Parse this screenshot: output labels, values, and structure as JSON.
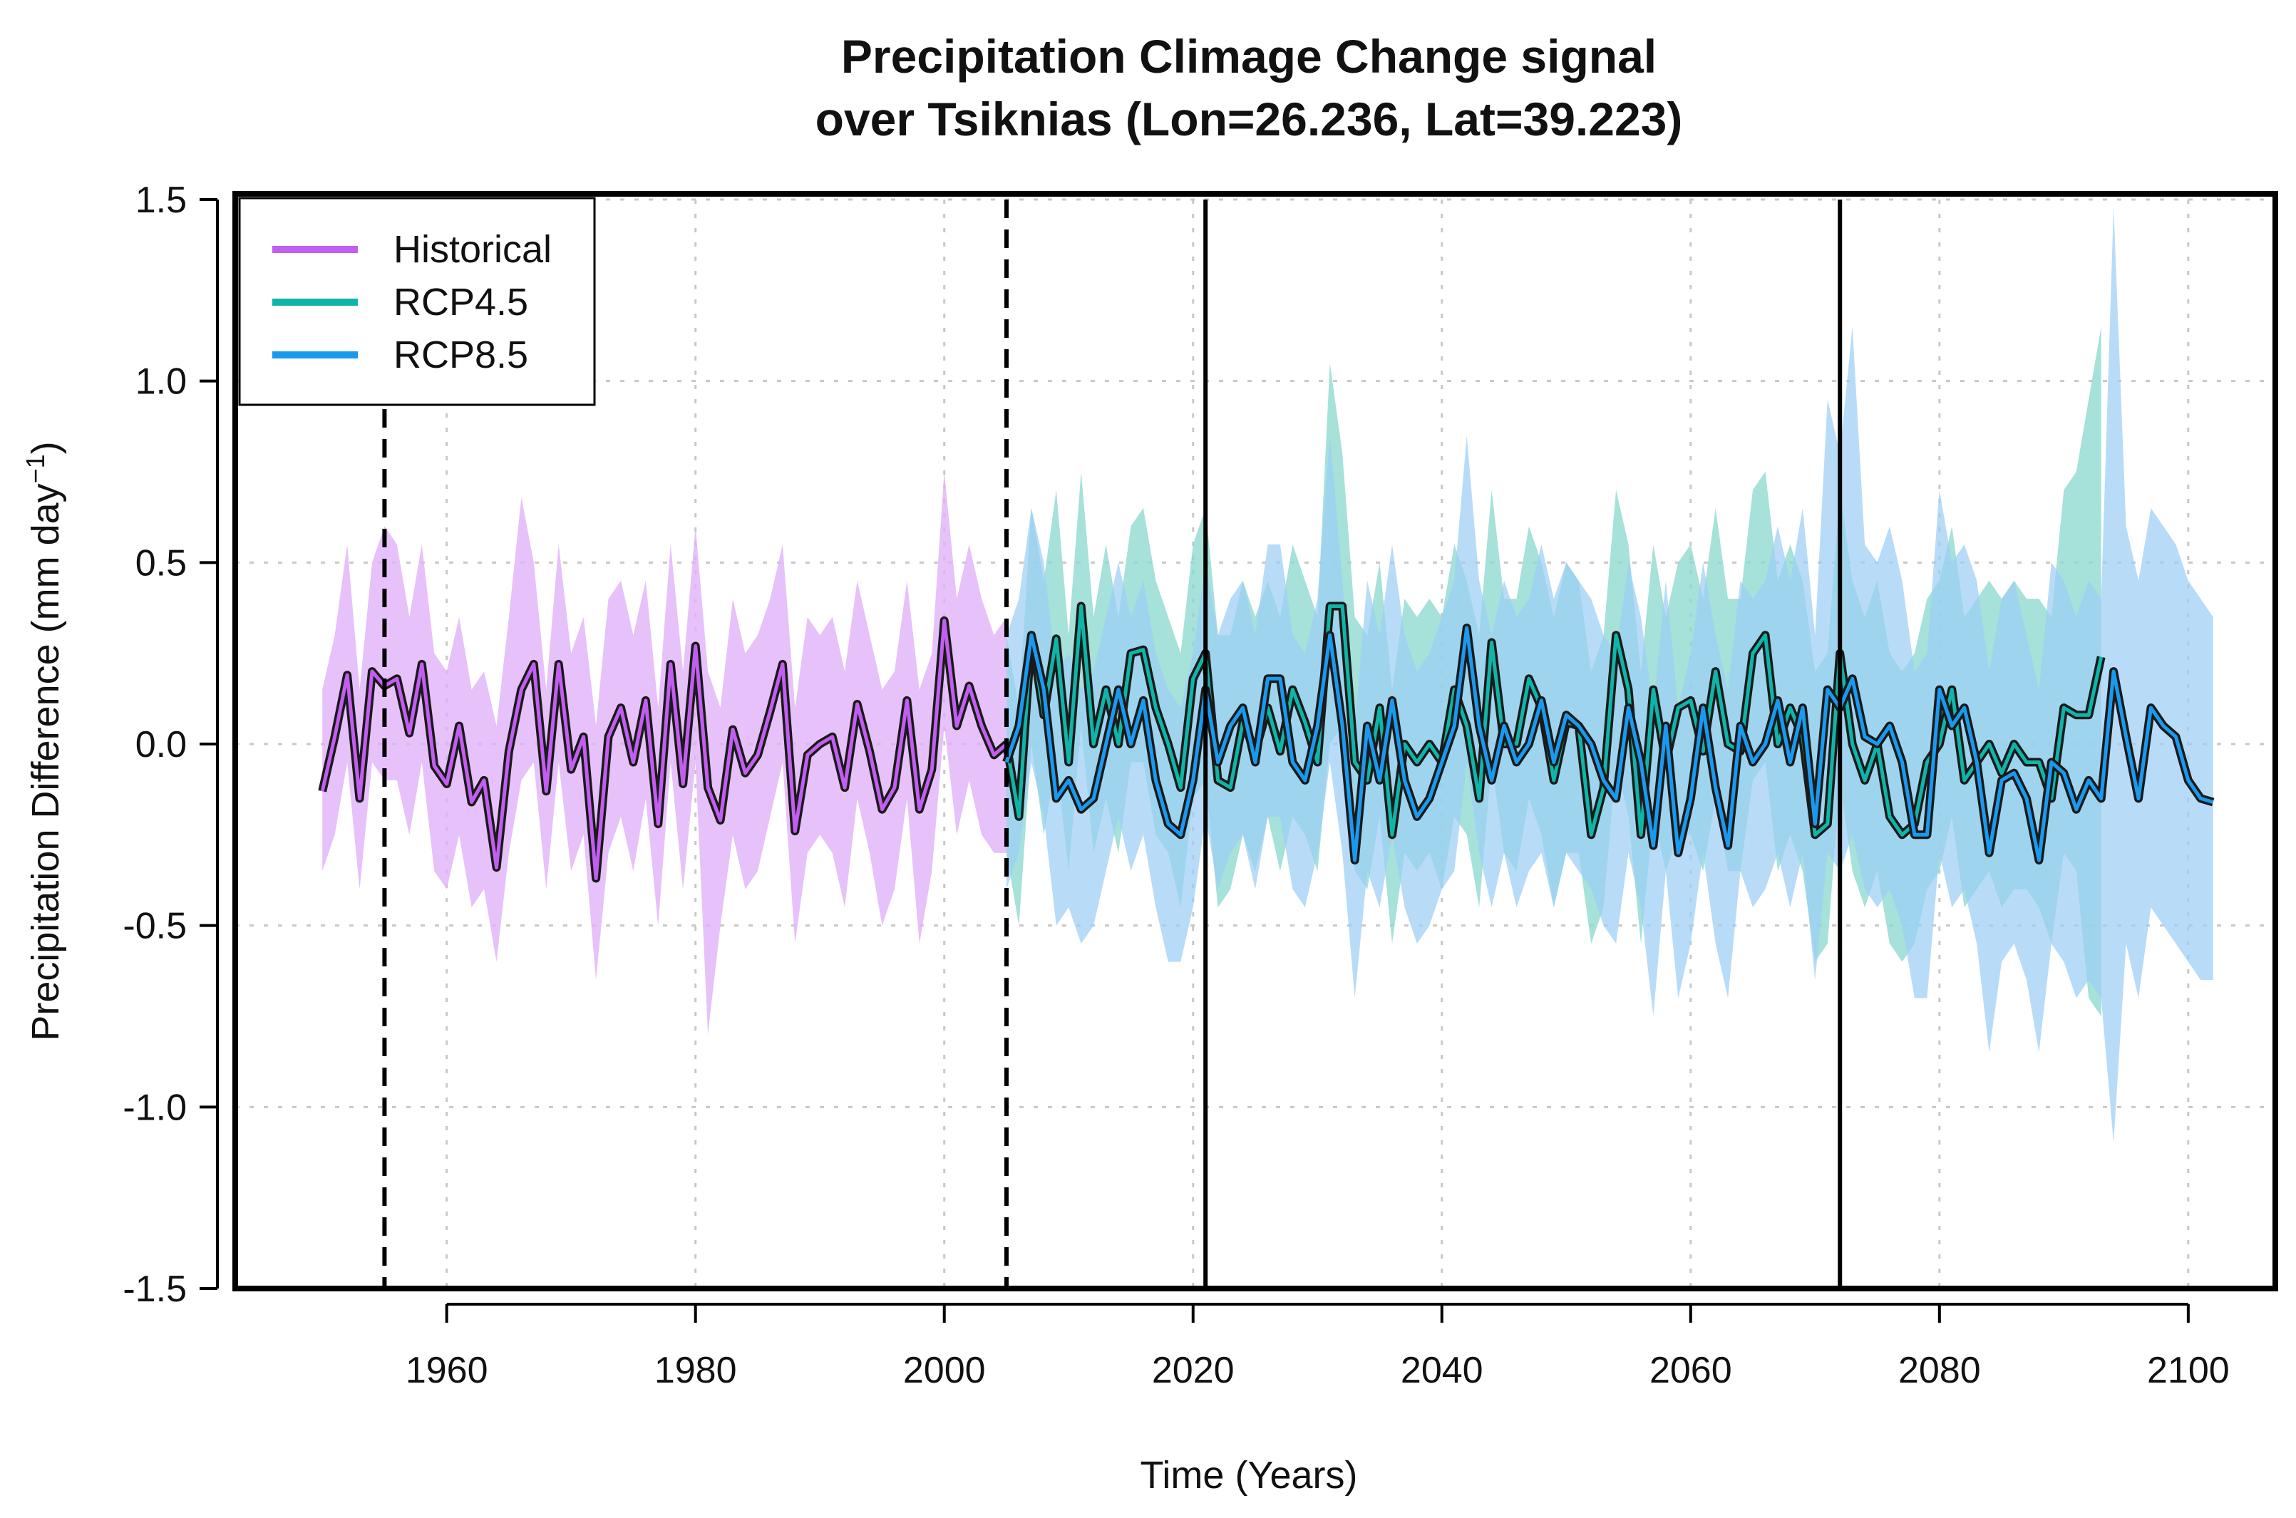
{
  "chart_data": {
    "type": "line",
    "title_line1": "Precipitation Climage Change signal",
    "title_line2": "over Tsiknias (Lon=26.236, Lat=39.223)",
    "xlabel": "Time (Years)",
    "ylabel": "Precipitation Difference (mm day",
    "ylabel_superscript": "−1",
    "ylabel_close": ")",
    "xlim": [
      1943,
      2107
    ],
    "ylim": [
      -1.5,
      1.5
    ],
    "xticks": [
      1960,
      1980,
      2000,
      2020,
      2040,
      2060,
      2080,
      2100
    ],
    "xtick_labels": [
      "1960",
      "1980",
      "2000",
      "2020",
      "2040",
      "2060",
      "2080",
      "2100"
    ],
    "yticks": [
      1.5,
      1.0,
      0.5,
      0.0,
      -0.5,
      -1.0,
      -1.5
    ],
    "ytick_labels": [
      "1.5",
      "1.0",
      "0.5",
      "0.0",
      "-0.5",
      "-1.0",
      "-1.5"
    ],
    "grid": true,
    "legend_position": "top-left",
    "reference_lines": [
      {
        "x": 1955,
        "style": "dashed"
      },
      {
        "x": 2005,
        "style": "dashed"
      },
      {
        "x": 2021,
        "style": "solid"
      },
      {
        "x": 2072,
        "style": "solid"
      }
    ],
    "series": [
      {
        "name": "Historical",
        "color": "#c25ef0",
        "band_color": "#e0b0f7",
        "x_start": 1950,
        "values": [
          -0.13,
          0.02,
          0.19,
          -0.15,
          0.2,
          0.16,
          0.18,
          0.03,
          0.22,
          -0.06,
          -0.11,
          0.05,
          -0.16,
          -0.1,
          -0.34,
          -0.02,
          0.15,
          0.22,
          -0.13,
          0.22,
          -0.07,
          0.02,
          -0.37,
          0.02,
          0.1,
          -0.05,
          0.12,
          -0.22,
          0.22,
          -0.11,
          0.27,
          -0.12,
          -0.21,
          0.04,
          -0.08,
          -0.03,
          0.09,
          0.22,
          -0.24,
          -0.03,
          0.0,
          0.02,
          -0.12,
          0.11,
          -0.02,
          -0.18,
          -0.12,
          0.12,
          -0.18,
          -0.07,
          0.34,
          0.05,
          0.16,
          0.05,
          -0.03,
          0.0
        ],
        "lower": [
          -0.35,
          -0.25,
          -0.05,
          -0.4,
          -0.05,
          -0.1,
          -0.1,
          -0.25,
          -0.05,
          -0.35,
          -0.4,
          -0.25,
          -0.45,
          -0.4,
          -0.6,
          -0.3,
          -0.1,
          -0.05,
          -0.4,
          -0.05,
          -0.35,
          -0.25,
          -0.65,
          -0.3,
          -0.2,
          -0.35,
          -0.15,
          -0.5,
          -0.05,
          -0.4,
          -0.05,
          -0.8,
          -0.5,
          -0.25,
          -0.4,
          -0.35,
          -0.2,
          -0.05,
          -0.55,
          -0.3,
          -0.25,
          -0.3,
          -0.45,
          -0.15,
          -0.3,
          -0.5,
          -0.4,
          -0.15,
          -0.55,
          -0.35,
          0.05,
          -0.25,
          -0.1,
          -0.25,
          -0.3,
          -0.3
        ],
        "upper": [
          0.15,
          0.3,
          0.55,
          0.15,
          0.5,
          0.6,
          0.55,
          0.35,
          0.55,
          0.25,
          0.2,
          0.35,
          0.15,
          0.2,
          0.05,
          0.35,
          0.68,
          0.5,
          0.15,
          0.55,
          0.25,
          0.35,
          0.05,
          0.4,
          0.45,
          0.3,
          0.45,
          0.1,
          0.55,
          0.2,
          0.6,
          0.2,
          0.1,
          0.4,
          0.25,
          0.3,
          0.4,
          0.55,
          0.1,
          0.35,
          0.3,
          0.35,
          0.2,
          0.45,
          0.3,
          0.15,
          0.2,
          0.45,
          0.15,
          0.25,
          0.75,
          0.4,
          0.55,
          0.4,
          0.3,
          0.35
        ]
      },
      {
        "name": "RCP4.5",
        "color": "#0fb5a8",
        "band_color": "#8dd9cf",
        "x_start": 2005,
        "values": [
          0.0,
          -0.2,
          0.3,
          0.08,
          0.29,
          -0.05,
          0.38,
          0.0,
          0.15,
          0.0,
          0.25,
          0.26,
          0.1,
          0.0,
          -0.12,
          0.18,
          0.25,
          -0.1,
          -0.12,
          0.06,
          -0.02,
          0.1,
          -0.02,
          0.15,
          0.06,
          -0.05,
          0.38,
          0.38,
          -0.05,
          -0.1,
          0.1,
          -0.25,
          0.0,
          -0.05,
          0.0,
          -0.05,
          0.15,
          0.05,
          -0.15,
          0.28,
          0.0,
          0.0,
          0.18,
          0.1,
          -0.1,
          0.06,
          0.05,
          -0.25,
          -0.12,
          0.3,
          0.15,
          -0.25,
          0.15,
          -0.05,
          0.1,
          0.12,
          -0.02,
          0.2,
          0.0,
          -0.02,
          0.25,
          0.3,
          0.0,
          0.1,
          0.02,
          -0.25,
          -0.22,
          0.25,
          0.0,
          -0.1,
          0.0,
          -0.2,
          -0.25,
          -0.22,
          -0.05,
          0.0,
          0.15,
          -0.1,
          -0.05,
          0.0,
          -0.08,
          0.0,
          -0.05,
          -0.05,
          -0.15,
          0.1,
          0.08,
          0.08,
          0.24
        ],
        "lower": [
          -0.3,
          -0.5,
          0.0,
          -0.25,
          -0.05,
          -0.35,
          0.05,
          -0.3,
          -0.15,
          -0.3,
          -0.05,
          -0.05,
          -0.25,
          -0.3,
          -0.45,
          -0.15,
          -0.1,
          -0.45,
          -0.4,
          -0.25,
          -0.35,
          -0.2,
          -0.35,
          -0.2,
          -0.25,
          -0.35,
          0.0,
          0.05,
          -0.35,
          -0.4,
          -0.2,
          -0.55,
          -0.3,
          -0.35,
          -0.3,
          -0.4,
          -0.2,
          -0.25,
          -0.45,
          -0.05,
          -0.3,
          -0.35,
          -0.15,
          -0.25,
          -0.45,
          -0.3,
          -0.3,
          -0.55,
          -0.45,
          -0.05,
          -0.2,
          -0.55,
          -0.2,
          -0.35,
          -0.25,
          -0.25,
          -0.35,
          -0.15,
          -0.35,
          -0.35,
          -0.1,
          -0.05,
          -0.35,
          -0.25,
          -0.35,
          -0.6,
          -0.55,
          -0.1,
          -0.35,
          -0.45,
          -0.35,
          -0.55,
          -0.6,
          -0.55,
          -0.4,
          -0.35,
          -0.2,
          -0.45,
          -0.4,
          -0.35,
          -0.45,
          -0.4,
          -0.4,
          -0.45,
          -0.55,
          -0.3,
          -0.35,
          -0.7,
          -0.75
        ],
        "upper": [
          0.3,
          0.1,
          0.65,
          0.45,
          0.7,
          0.3,
          0.75,
          0.35,
          0.55,
          0.35,
          0.6,
          0.65,
          0.45,
          0.35,
          0.25,
          0.55,
          0.65,
          0.3,
          0.3,
          0.45,
          0.35,
          0.45,
          0.35,
          0.55,
          0.45,
          0.35,
          1.05,
          0.8,
          0.35,
          0.3,
          0.5,
          0.15,
          0.4,
          0.35,
          0.4,
          0.35,
          0.55,
          0.45,
          0.3,
          0.7,
          0.4,
          0.4,
          0.6,
          0.5,
          0.35,
          0.5,
          0.45,
          0.2,
          0.3,
          0.7,
          0.55,
          0.2,
          0.55,
          0.35,
          0.5,
          0.55,
          0.4,
          0.65,
          0.4,
          0.4,
          0.7,
          0.75,
          0.45,
          0.55,
          0.45,
          0.2,
          0.25,
          0.7,
          0.45,
          0.35,
          0.45,
          0.25,
          0.2,
          0.25,
          0.4,
          0.45,
          0.6,
          0.35,
          0.4,
          0.45,
          0.4,
          0.45,
          0.4,
          0.4,
          0.35,
          0.7,
          0.75,
          0.95,
          1.15
        ]
      },
      {
        "name": "RCP8.5",
        "color": "#1a9aef",
        "band_color": "#9ccef5",
        "x_start": 2005,
        "values": [
          -0.05,
          0.05,
          0.3,
          0.15,
          -0.15,
          -0.1,
          -0.18,
          -0.15,
          0.0,
          0.15,
          0.0,
          0.12,
          -0.1,
          -0.22,
          -0.25,
          -0.1,
          0.15,
          -0.05,
          0.05,
          0.1,
          -0.05,
          0.18,
          0.18,
          -0.05,
          -0.1,
          0.05,
          0.3,
          0.05,
          -0.32,
          0.05,
          -0.1,
          0.12,
          -0.1,
          -0.2,
          -0.15,
          -0.05,
          0.05,
          0.32,
          0.05,
          -0.1,
          0.05,
          -0.05,
          0.0,
          0.12,
          -0.05,
          0.08,
          0.05,
          0.0,
          -0.1,
          -0.15,
          0.1,
          -0.05,
          -0.28,
          0.05,
          -0.3,
          -0.15,
          0.1,
          -0.12,
          -0.28,
          0.05,
          -0.05,
          0.0,
          0.12,
          -0.05,
          0.1,
          -0.22,
          0.15,
          0.1,
          0.18,
          0.02,
          0.0,
          0.05,
          -0.05,
          -0.25,
          -0.25,
          0.15,
          0.05,
          0.1,
          -0.05,
          -0.3,
          -0.1,
          -0.08,
          -0.15,
          -0.32,
          -0.05,
          -0.08,
          -0.18,
          -0.1,
          -0.15,
          0.2,
          0.02,
          -0.15,
          0.1,
          0.05,
          0.02,
          -0.1,
          -0.15,
          -0.16
        ],
        "lower": [
          -0.4,
          -0.3,
          -0.05,
          -0.2,
          -0.5,
          -0.45,
          -0.55,
          -0.5,
          -0.35,
          -0.2,
          -0.35,
          -0.25,
          -0.45,
          -0.6,
          -0.6,
          -0.45,
          -0.2,
          -0.4,
          -0.3,
          -0.25,
          -0.4,
          -0.2,
          -0.2,
          -0.4,
          -0.45,
          -0.3,
          -0.05,
          -0.3,
          -0.7,
          -0.35,
          -0.45,
          -0.25,
          -0.45,
          -0.55,
          -0.5,
          -0.4,
          -0.35,
          -0.05,
          -0.3,
          -0.45,
          -0.3,
          -0.45,
          -0.35,
          -0.3,
          -0.45,
          -0.3,
          -0.35,
          -0.4,
          -0.5,
          -0.55,
          -0.3,
          -0.45,
          -0.75,
          -0.35,
          -0.7,
          -0.55,
          -0.3,
          -0.55,
          -0.7,
          -0.35,
          -0.45,
          -0.4,
          -0.3,
          -0.45,
          -0.3,
          -0.65,
          -0.3,
          -0.35,
          -0.25,
          -0.4,
          -0.45,
          -0.4,
          -0.5,
          -0.7,
          -0.7,
          -0.3,
          -0.45,
          -0.4,
          -0.55,
          -0.85,
          -0.6,
          -0.55,
          -0.65,
          -0.85,
          -0.55,
          -0.6,
          -0.7,
          -0.65,
          -0.7,
          -1.1,
          -0.55,
          -0.7,
          -0.45,
          -0.5,
          -0.55,
          -0.6,
          -0.65,
          -0.65
        ],
        "upper": [
          0.3,
          0.4,
          0.65,
          0.5,
          0.2,
          0.25,
          0.15,
          0.2,
          0.35,
          0.5,
          0.35,
          0.45,
          0.25,
          0.15,
          0.1,
          0.25,
          0.5,
          0.3,
          0.4,
          0.45,
          0.3,
          0.55,
          0.55,
          0.3,
          0.25,
          0.4,
          0.85,
          0.45,
          0.05,
          0.45,
          0.3,
          0.55,
          0.3,
          0.2,
          0.25,
          0.35,
          0.45,
          0.85,
          0.45,
          0.3,
          0.45,
          0.35,
          0.4,
          0.55,
          0.4,
          0.5,
          0.45,
          0.4,
          0.3,
          0.25,
          0.5,
          0.35,
          0.1,
          0.45,
          0.1,
          0.25,
          0.5,
          0.3,
          0.15,
          0.45,
          0.4,
          0.45,
          0.6,
          0.45,
          0.65,
          0.3,
          0.95,
          0.8,
          1.15,
          0.55,
          0.5,
          0.6,
          0.45,
          0.2,
          0.25,
          0.7,
          0.5,
          0.55,
          0.45,
          0.2,
          0.4,
          0.45,
          0.3,
          0.15,
          0.5,
          0.45,
          0.35,
          0.45,
          0.4,
          1.48,
          0.6,
          0.45,
          0.65,
          0.6,
          0.55,
          0.45,
          0.4,
          0.35
        ]
      }
    ]
  }
}
